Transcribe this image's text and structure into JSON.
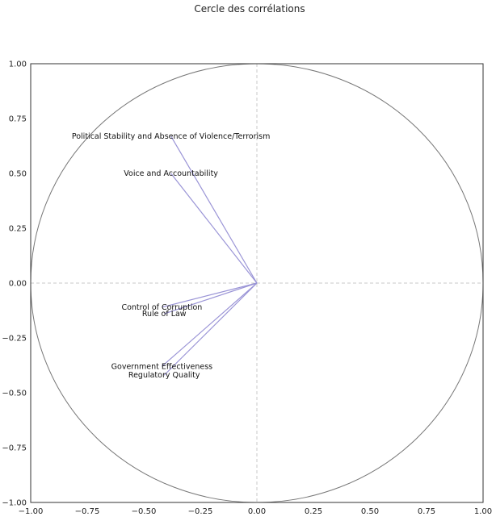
{
  "chart_data": {
    "type": "scatter",
    "title": "Cercle des corrélations",
    "xlabel": "",
    "ylabel": "",
    "xlim": [
      -1.0,
      1.0
    ],
    "ylim": [
      -1.0,
      1.0
    ],
    "x_ticks": [
      "−1.00",
      "−0.75",
      "−0.50",
      "−0.25",
      "0.00",
      "0.25",
      "0.50",
      "0.75",
      "1.00"
    ],
    "y_ticks": [
      "1.00",
      "0.75",
      "0.50",
      "0.25",
      "0.00",
      "−0.25",
      "−0.50",
      "−0.75",
      "−1.00"
    ],
    "grid": false,
    "unit_circle": true,
    "reference_lines": "dashed axes at x=0 and y=0",
    "arrow_color": "#9a94d6",
    "circle_color": "#777777",
    "variables": [
      {
        "label": "Political Stability and Absence of Violence/Terrorism",
        "x": -0.38,
        "y": 0.67
      },
      {
        "label": "Voice and Accountability",
        "x": -0.38,
        "y": 0.5
      },
      {
        "label": "Control of Corruption",
        "x": -0.42,
        "y": -0.11
      },
      {
        "label": "Rule of Law",
        "x": -0.41,
        "y": -0.14
      },
      {
        "label": "Government Effectiveness",
        "x": -0.42,
        "y": -0.38
      },
      {
        "label": "Regulatory Quality",
        "x": -0.41,
        "y": -0.42
      }
    ]
  }
}
